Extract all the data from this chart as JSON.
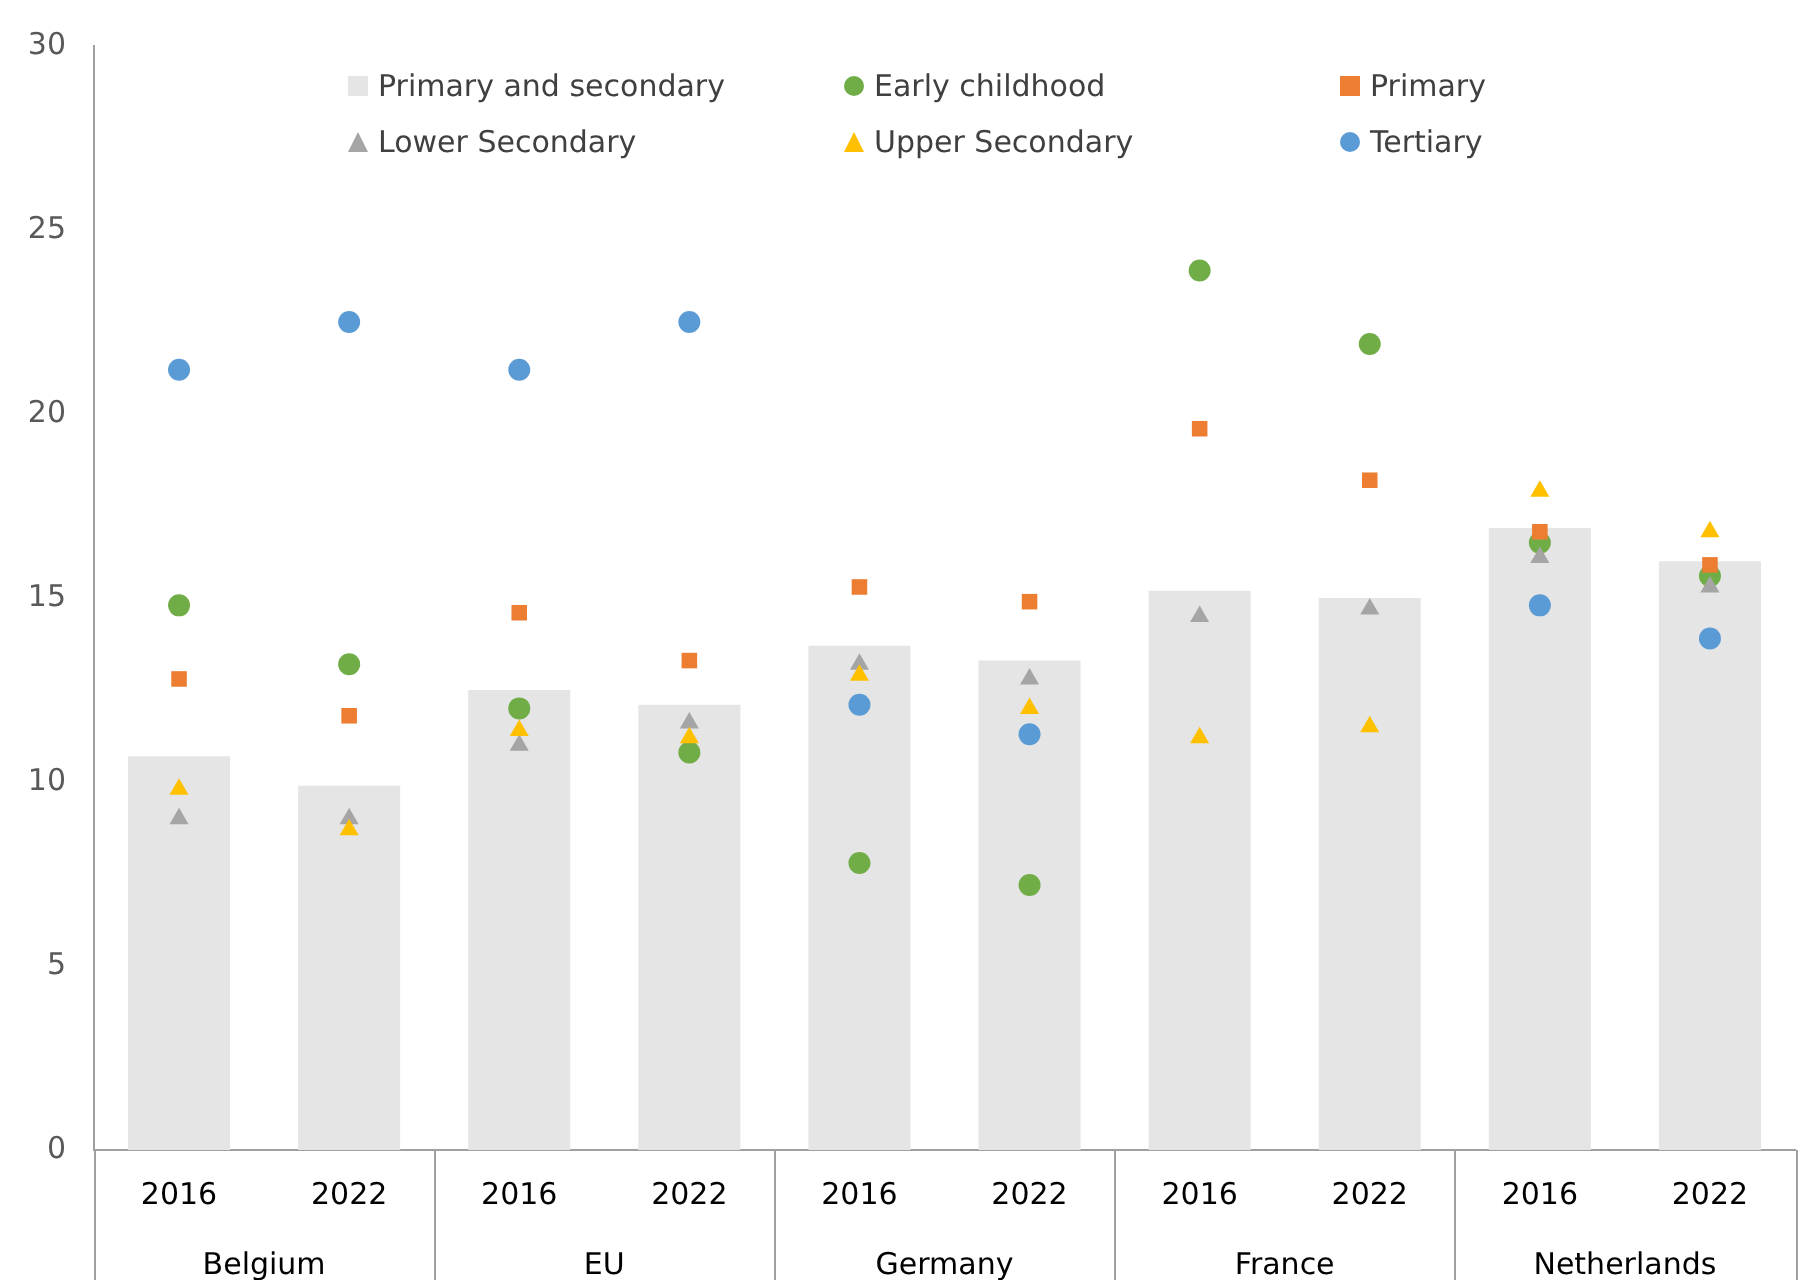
{
  "chart_data": {
    "type": "bar",
    "categories": [
      "2016",
      "2022",
      "2016",
      "2022",
      "2016",
      "2022",
      "2016",
      "2022",
      "2016",
      "2022"
    ],
    "annotations": [
      "Belgium",
      "EU",
      "Germany",
      "France",
      "Netherlands"
    ],
    "series": [
      {
        "name": "Primary and secondary",
        "color": "#e5e5e5",
        "values": [
          10.7,
          9.9,
          12.5,
          12.1,
          13.7,
          13.3,
          15.2,
          15.0,
          16.9,
          16.0
        ]
      },
      {
        "name": "Early childhood",
        "type": "scatter",
        "marker": "circle",
        "color": "#70ad47",
        "values": [
          14.8,
          13.2,
          12.0,
          10.8,
          7.8,
          7.2,
          23.9,
          21.9,
          16.5,
          15.6
        ]
      },
      {
        "name": "Primary",
        "type": "scatter",
        "marker": "square",
        "color": "#ed7d31",
        "values": [
          12.8,
          11.8,
          14.6,
          13.3,
          15.3,
          14.9,
          19.6,
          18.2,
          16.8,
          15.9
        ]
      },
      {
        "name": "Lower Secondary",
        "type": "scatter",
        "marker": "triangle",
        "color": "#a5a5a5",
        "values": [
          9.0,
          9.0,
          11.0,
          11.6,
          13.2,
          12.8,
          14.5,
          14.7,
          16.1,
          15.3
        ]
      },
      {
        "name": "Upper Secondary",
        "type": "scatter",
        "marker": "triangle",
        "color": "#ffc000",
        "values": [
          9.8,
          8.7,
          11.4,
          11.2,
          12.9,
          12.0,
          11.2,
          11.5,
          17.9,
          16.8
        ]
      },
      {
        "name": "Tertiary",
        "type": "scatter",
        "marker": "circle",
        "color": "#5b9bd5",
        "values": [
          21.2,
          22.5,
          21.2,
          22.5,
          12.1,
          11.3,
          null,
          null,
          14.8,
          13.9
        ]
      }
    ],
    "ylim": [
      0,
      30
    ],
    "yticks": [
      0,
      5,
      10,
      15,
      20,
      25,
      30
    ],
    "grid": false,
    "legend": "top"
  }
}
